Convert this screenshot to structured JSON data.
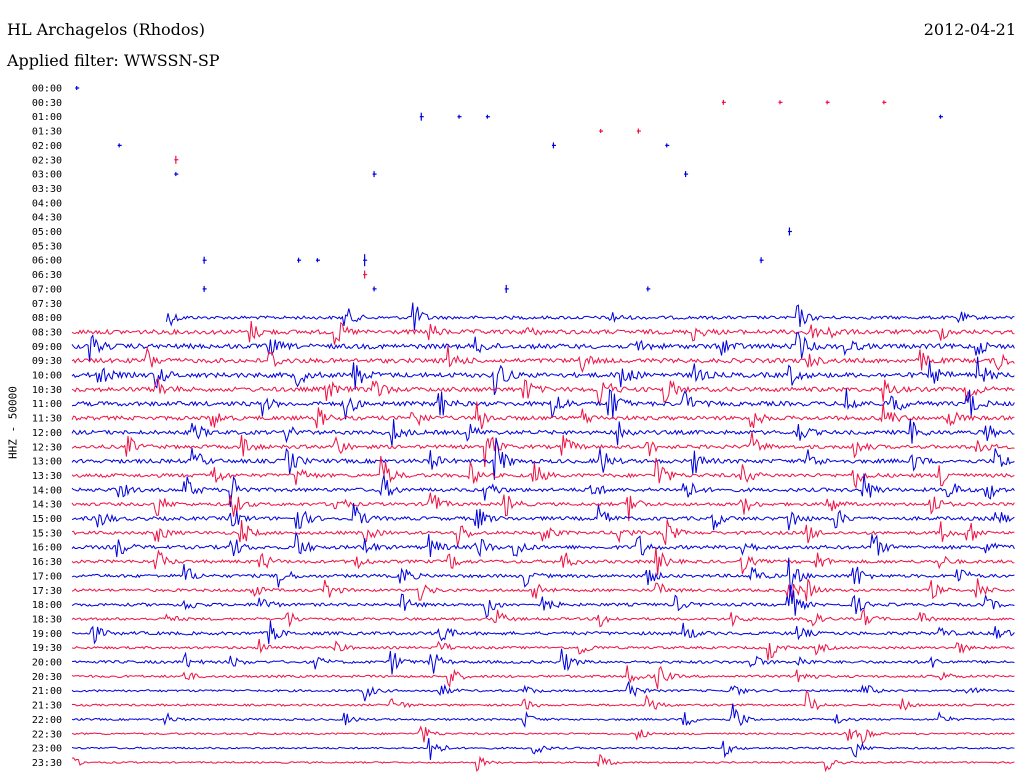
{
  "header": {
    "station": "HL Archagelos (Rhodos)",
    "date": "2012-04-21",
    "filter_label": "Applied filter: WWSSN-SP"
  },
  "chart_data": {
    "type": "line",
    "title": "HL Archagelos (Rhodos)",
    "subtitle": "Applied filter: WWSSN-SP",
    "ylabel": "HHZ - 50000",
    "xlabel": "",
    "row_labels": [
      "00:00",
      "00:30",
      "01:00",
      "01:30",
      "02:00",
      "02:30",
      "03:00",
      "03:30",
      "04:00",
      "04:30",
      "05:00",
      "05:30",
      "06:00",
      "06:30",
      "07:00",
      "07:30",
      "08:00",
      "08:30",
      "09:00",
      "09:30",
      "10:00",
      "10:30",
      "11:00",
      "11:30",
      "12:00",
      "12:30",
      "13:00",
      "13:30",
      "14:00",
      "14:30",
      "15:00",
      "15:30",
      "16:00",
      "16:30",
      "17:00",
      "17:30",
      "18:00",
      "18:30",
      "19:00",
      "19:30",
      "20:00",
      "20:30",
      "21:00",
      "21:30",
      "22:00",
      "22:30",
      "23:00",
      "23:30"
    ],
    "colors": [
      "#0000dd",
      "#ee1144"
    ],
    "row_data_start": [
      0.0,
      0.0,
      0.0,
      0.0,
      0.0,
      0.0,
      0.0,
      0.0,
      0.0,
      0.0,
      0.0,
      0.0,
      0.0,
      0.0,
      0.0,
      0.0,
      0.1,
      0.0,
      0.0,
      0.0,
      0.0,
      0.0,
      0.0,
      0.0,
      0.0,
      0.0,
      0.0,
      0.0,
      0.0,
      0.0,
      0.0,
      0.0,
      0.0,
      0.0,
      0.0,
      0.0,
      0.0,
      0.0,
      0.0,
      0.0,
      0.0,
      0.0,
      0.0,
      0.0,
      0.0,
      0.0,
      0.0,
      0.0
    ],
    "row_noise": [
      0,
      0,
      0,
      0,
      0,
      0,
      0,
      0,
      0,
      0,
      0,
      0,
      0,
      0,
      0,
      0,
      1.6,
      2.2,
      2.4,
      2.2,
      2.4,
      2.2,
      2.2,
      2.0,
      2.0,
      1.8,
      2.0,
      1.8,
      1.8,
      1.6,
      1.8,
      1.6,
      1.8,
      1.6,
      1.6,
      1.4,
      1.5,
      1.3,
      1.6,
      1.2,
      1.4,
      1.2,
      1.1,
      1.0,
      1.0,
      0.9,
      0.9,
      0.8
    ],
    "row_events": [
      [
        [
          0.5,
          4
        ]
      ],
      [
        [
          69,
          5
        ],
        [
          75,
          4
        ],
        [
          80,
          4
        ],
        [
          86,
          4
        ]
      ],
      [
        [
          37,
          8
        ],
        [
          41,
          4
        ],
        [
          44,
          4
        ],
        [
          92,
          4
        ]
      ],
      [
        [
          56,
          4
        ],
        [
          60,
          5
        ]
      ],
      [
        [
          5,
          4
        ],
        [
          51,
          6
        ],
        [
          63,
          4
        ]
      ],
      [
        [
          11,
          8
        ]
      ],
      [
        [
          11,
          4
        ],
        [
          32,
          6
        ],
        [
          65,
          6
        ]
      ],
      [],
      [],
      [],
      [
        [
          76,
          8
        ]
      ],
      [],
      [
        [
          14,
          7
        ],
        [
          24,
          5
        ],
        [
          26,
          4
        ],
        [
          31,
          12
        ],
        [
          73,
          6
        ]
      ],
      [
        [
          31,
          8
        ]
      ],
      [
        [
          14,
          6
        ],
        [
          32,
          5
        ],
        [
          46,
          8
        ],
        [
          61,
          5
        ]
      ],
      [],
      [
        [
          10,
          12
        ],
        [
          29,
          12
        ],
        [
          36,
          22
        ],
        [
          57,
          8
        ],
        [
          77,
          12
        ],
        [
          94,
          6
        ]
      ],
      [
        [
          19,
          10
        ],
        [
          28,
          14
        ],
        [
          38,
          8
        ],
        [
          48,
          6
        ],
        [
          66,
          8
        ],
        [
          78,
          10
        ],
        [
          80,
          12
        ],
        [
          92,
          8
        ]
      ],
      [
        [
          2,
          14
        ],
        [
          21,
          10
        ],
        [
          43,
          8
        ],
        [
          60,
          8
        ],
        [
          69,
          10
        ],
        [
          77,
          16
        ],
        [
          82,
          10
        ],
        [
          96,
          8
        ]
      ],
      [
        [
          8,
          12
        ],
        [
          21,
          12
        ],
        [
          40,
          14
        ],
        [
          54,
          10
        ],
        [
          78,
          8
        ],
        [
          90,
          10
        ],
        [
          98,
          12
        ]
      ],
      [
        [
          3,
          10
        ],
        [
          9,
          12
        ],
        [
          24,
          10
        ],
        [
          30,
          16
        ],
        [
          45,
          22
        ],
        [
          58,
          20
        ],
        [
          66,
          10
        ],
        [
          76,
          12
        ],
        [
          91,
          12
        ],
        [
          96,
          16
        ]
      ],
      [
        [
          9,
          14
        ],
        [
          27,
          12
        ],
        [
          32,
          16
        ],
        [
          48,
          12
        ],
        [
          56,
          18
        ],
        [
          63,
          14
        ],
        [
          86,
          12
        ],
        [
          95,
          10
        ]
      ],
      [
        [
          20,
          14
        ],
        [
          29,
          16
        ],
        [
          39,
          16
        ],
        [
          51,
          18
        ],
        [
          57,
          22
        ],
        [
          65,
          12
        ],
        [
          82,
          16
        ],
        [
          87,
          14
        ],
        [
          95,
          16
        ]
      ],
      [
        [
          15,
          10
        ],
        [
          26,
          12
        ],
        [
          36,
          16
        ],
        [
          43,
          18
        ],
        [
          54,
          10
        ],
        [
          72,
          12
        ],
        [
          86,
          16
        ],
        [
          93,
          10
        ]
      ],
      [
        [
          13,
          10
        ],
        [
          23,
          8
        ],
        [
          34,
          14
        ],
        [
          42,
          10
        ],
        [
          58,
          12
        ],
        [
          77,
          10
        ],
        [
          89,
          12
        ],
        [
          97,
          8
        ]
      ],
      [
        [
          6,
          10
        ],
        [
          18,
          14
        ],
        [
          28,
          12
        ],
        [
          44,
          20
        ],
        [
          52,
          14
        ],
        [
          61,
          10
        ],
        [
          72,
          14
        ],
        [
          83,
          10
        ],
        [
          96,
          10
        ]
      ],
      [
        [
          13,
          12
        ],
        [
          23,
          14
        ],
        [
          38,
          10
        ],
        [
          45,
          22
        ],
        [
          56,
          16
        ],
        [
          66,
          12
        ],
        [
          78,
          12
        ],
        [
          89,
          10
        ],
        [
          98,
          14
        ]
      ],
      [
        [
          15,
          12
        ],
        [
          24,
          10
        ],
        [
          33,
          18
        ],
        [
          42,
          16
        ],
        [
          49,
          14
        ],
        [
          62,
          22
        ],
        [
          71,
          14
        ],
        [
          83,
          12
        ],
        [
          92,
          16
        ]
      ],
      [
        [
          5,
          10
        ],
        [
          12,
          16
        ],
        [
          17,
          18
        ],
        [
          33,
          14
        ],
        [
          44,
          12
        ],
        [
          55,
          12
        ],
        [
          65,
          14
        ],
        [
          84,
          16
        ],
        [
          93,
          10
        ],
        [
          97,
          12
        ]
      ],
      [
        [
          9,
          14
        ],
        [
          17,
          16
        ],
        [
          28,
          12
        ],
        [
          38,
          18
        ],
        [
          46,
          12
        ],
        [
          59,
          16
        ],
        [
          71,
          12
        ],
        [
          80,
          14
        ],
        [
          91,
          14
        ]
      ],
      [
        [
          3,
          10
        ],
        [
          17,
          12
        ],
        [
          24,
          14
        ],
        [
          30,
          16
        ],
        [
          43,
          12
        ],
        [
          56,
          12
        ],
        [
          68,
          10
        ],
        [
          76,
          14
        ],
        [
          81,
          10
        ],
        [
          98,
          10
        ]
      ],
      [
        [
          9,
          12
        ],
        [
          18,
          14
        ],
        [
          31,
          12
        ],
        [
          41,
          14
        ],
        [
          50,
          12
        ],
        [
          58,
          10
        ],
        [
          63,
          14
        ],
        [
          78,
          10
        ],
        [
          92,
          12
        ],
        [
          95,
          14
        ]
      ],
      [
        [
          5,
          10
        ],
        [
          17,
          12
        ],
        [
          24,
          14
        ],
        [
          31,
          10
        ],
        [
          38,
          12
        ],
        [
          43,
          14
        ],
        [
          47,
          12
        ],
        [
          60,
          14
        ],
        [
          71,
          12
        ],
        [
          85,
          14
        ],
        [
          97,
          10
        ]
      ],
      [
        [
          9,
          14
        ],
        [
          20,
          12
        ],
        [
          30,
          10
        ],
        [
          40,
          10
        ],
        [
          52,
          12
        ],
        [
          62,
          14
        ],
        [
          71,
          12
        ],
        [
          79,
          10
        ],
        [
          92,
          8
        ]
      ],
      [
        [
          12,
          12
        ],
        [
          22,
          14
        ],
        [
          35,
          12
        ],
        [
          48,
          10
        ],
        [
          61,
          10
        ],
        [
          72,
          12
        ],
        [
          76,
          20
        ],
        [
          83,
          14
        ],
        [
          94,
          10
        ]
      ],
      [
        [
          19,
          10
        ],
        [
          27,
          12
        ],
        [
          37,
          10
        ],
        [
          49,
          12
        ],
        [
          62,
          10
        ],
        [
          76,
          14
        ],
        [
          78,
          10
        ],
        [
          91,
          10
        ],
        [
          96,
          12
        ]
      ],
      [
        [
          12,
          8
        ],
        [
          20,
          12
        ],
        [
          35,
          10
        ],
        [
          44,
          12
        ],
        [
          50,
          10
        ],
        [
          64,
          8
        ],
        [
          76,
          24
        ],
        [
          83,
          10
        ],
        [
          97,
          8
        ]
      ],
      [
        [
          10,
          6
        ],
        [
          23,
          8
        ],
        [
          45,
          10
        ],
        [
          56,
          8
        ],
        [
          70,
          8
        ],
        [
          78,
          14
        ],
        [
          84,
          8
        ],
        [
          90,
          6
        ]
      ],
      [
        [
          2,
          14
        ],
        [
          21,
          12
        ],
        [
          39,
          14
        ],
        [
          65,
          10
        ],
        [
          77,
          8
        ],
        [
          92,
          6
        ],
        [
          98,
          10
        ]
      ],
      [
        [
          20,
          8
        ],
        [
          28,
          6
        ],
        [
          39,
          8
        ],
        [
          54,
          8
        ],
        [
          74,
          12
        ],
        [
          79,
          6
        ],
        [
          94,
          6
        ]
      ],
      [
        [
          12,
          8
        ],
        [
          17,
          6
        ],
        [
          26,
          6
        ],
        [
          34,
          12
        ],
        [
          38,
          16
        ],
        [
          52,
          14
        ],
        [
          72,
          10
        ],
        [
          77,
          6
        ],
        [
          91,
          6
        ]
      ],
      [
        [
          12,
          6
        ],
        [
          40,
          12
        ],
        [
          59,
          10
        ],
        [
          62,
          16
        ],
        [
          77,
          10
        ],
        [
          92,
          6
        ]
      ],
      [
        [
          31,
          10
        ],
        [
          39,
          8
        ],
        [
          48,
          6
        ],
        [
          59,
          12
        ],
        [
          70,
          8
        ],
        [
          84,
          8
        ],
        [
          95,
          8
        ]
      ],
      [
        [
          34,
          10
        ],
        [
          48,
          6
        ],
        [
          61,
          14
        ],
        [
          78,
          14
        ],
        [
          88,
          6
        ]
      ],
      [
        [
          10,
          6
        ],
        [
          29,
          6
        ],
        [
          48,
          8
        ],
        [
          65,
          8
        ],
        [
          70,
          22
        ],
        [
          81,
          6
        ],
        [
          92,
          6
        ]
      ],
      [
        [
          37,
          12
        ],
        [
          60,
          6
        ],
        [
          82,
          12
        ],
        [
          84,
          8
        ]
      ],
      [
        [
          38,
          18
        ],
        [
          49,
          8
        ],
        [
          69,
          10
        ],
        [
          83,
          10
        ]
      ],
      [
        [
          0,
          6
        ],
        [
          43,
          8
        ],
        [
          56,
          8
        ],
        [
          80,
          8
        ]
      ]
    ]
  }
}
